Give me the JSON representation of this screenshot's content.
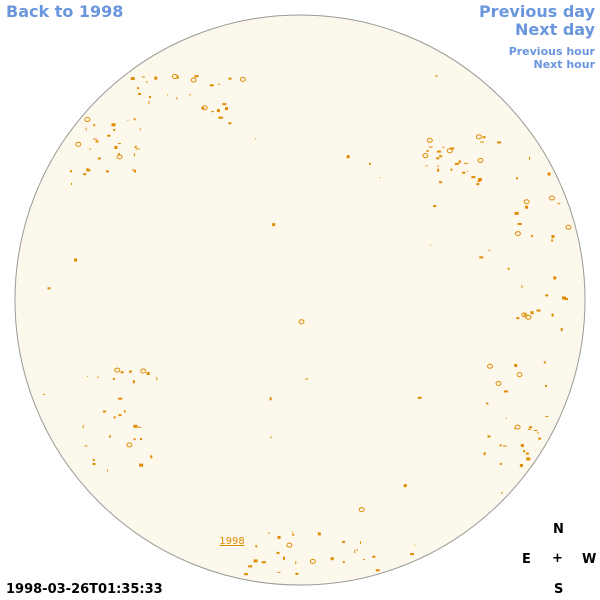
{
  "nav": {
    "back": "Back to 1998",
    "previous_day": "Previous day",
    "next_day": "Next day",
    "previous_hour": "Previous hour",
    "next_hour": "Next hour"
  },
  "disk": {
    "year_link": "1998"
  },
  "compass": {
    "north": "N",
    "east": "E",
    "center": "+",
    "west": "W",
    "south": "S"
  },
  "timestamp": "1998-03-26T01:35:33"
}
